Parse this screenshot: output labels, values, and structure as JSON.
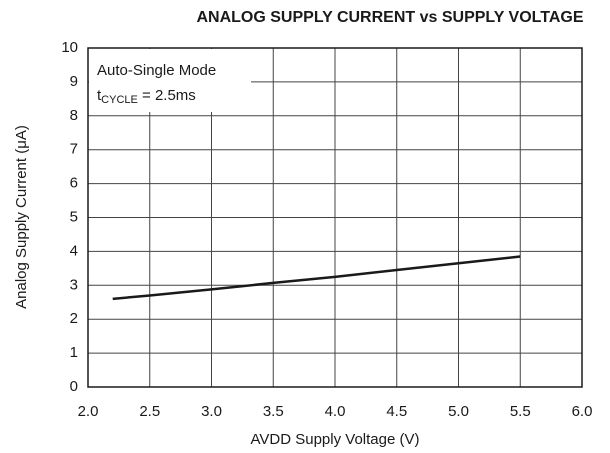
{
  "chart_data": {
    "type": "line",
    "title": "ANALOG SUPPLY CURRENT vs SUPPLY VOLTAGE",
    "x_label": "AVDD Supply Voltage (V)",
    "y_label": "Analog Supply Current (μA)",
    "annotation": {
      "line1": "Auto-Single Mode",
      "symbol": "t",
      "subscript": "CYCLE",
      "rest": " = 2.5ms"
    },
    "x": [
      2.2,
      2.5,
      3.0,
      3.5,
      4.0,
      4.5,
      5.0,
      5.5
    ],
    "series": [
      {
        "name": "Analog Supply Current",
        "color": "#1a1a1a",
        "values": [
          2.6,
          2.7,
          2.88,
          3.07,
          3.25,
          3.45,
          3.65,
          3.85
        ]
      }
    ],
    "xlim": [
      2,
      6
    ],
    "xticks": [
      {
        "value": 2,
        "label": "2.0"
      },
      2.5,
      {
        "value": 3,
        "label": "3.0"
      },
      3.5,
      {
        "value": 4,
        "label": "4.0"
      },
      4.5,
      {
        "value": 5,
        "label": "5.0"
      },
      5.5,
      {
        "value": 6,
        "label": "6.0"
      }
    ],
    "ylim": [
      0,
      10
    ],
    "yticks": [
      0,
      1,
      2,
      3,
      4,
      5,
      6,
      7,
      8,
      9,
      10
    ],
    "grid": true
  }
}
